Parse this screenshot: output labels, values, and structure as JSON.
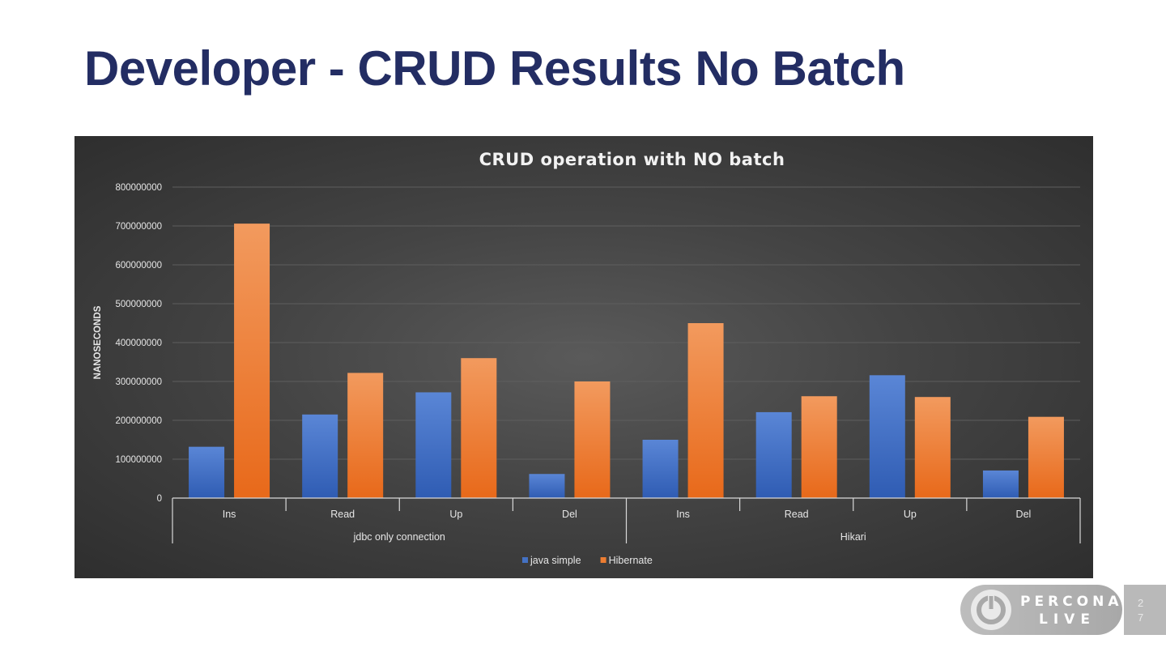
{
  "slide": {
    "title": "Developer - CRUD Results No Batch",
    "page_number_digits": [
      "2",
      "7"
    ]
  },
  "logo": {
    "icon": "power-icon",
    "word_top": "PERCONA",
    "word_bottom": "LIVE"
  },
  "colors": {
    "title": "#232d63",
    "java_simple": "#4472c4",
    "hibernate": "#ed7d31",
    "chart_background": "#444444"
  },
  "chart_data": {
    "type": "bar",
    "title": "CRUD operation with NO batch",
    "ylabel": "NANOSECONDS",
    "xlabel": "",
    "ylim": [
      0,
      800000000
    ],
    "yticks": [
      "0",
      "100000000",
      "200000000",
      "300000000",
      "400000000",
      "500000000",
      "600000000",
      "700000000",
      "800000000"
    ],
    "grid": true,
    "legend_position": "bottom",
    "groups": [
      {
        "name": "jdbc only connection",
        "categories": [
          "Ins",
          "Read",
          "Up",
          "Del"
        ]
      },
      {
        "name": "Hikari",
        "categories": [
          "Ins",
          "Read",
          "Up",
          "Del"
        ]
      }
    ],
    "categories": [
      "Ins",
      "Read",
      "Up",
      "Del",
      "Ins",
      "Read",
      "Up",
      "Del"
    ],
    "series": [
      {
        "name": "java simple",
        "values": [
          132000000,
          215000000,
          272000000,
          62000000,
          150000000,
          221000000,
          316000000,
          71000000
        ]
      },
      {
        "name": "Hibernate",
        "values": [
          706000000,
          322000000,
          360000000,
          300000000,
          450000000,
          262000000,
          260000000,
          209000000
        ]
      }
    ]
  }
}
